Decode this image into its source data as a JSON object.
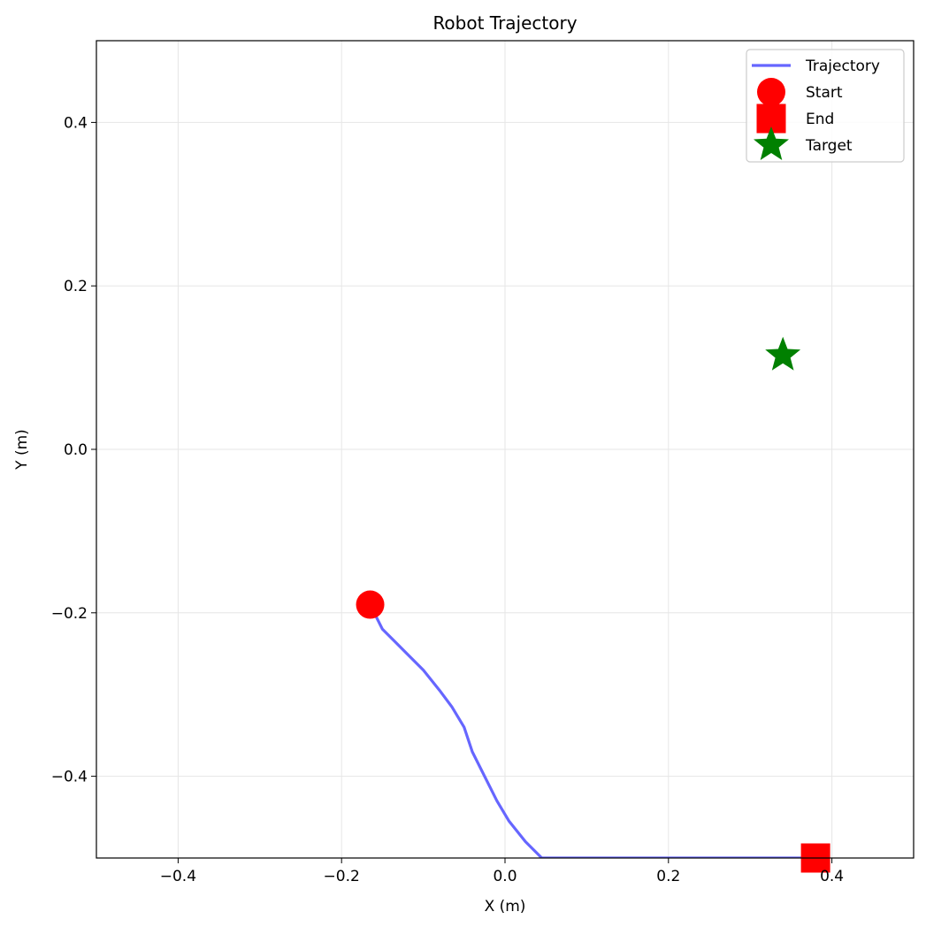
{
  "chart_data": {
    "type": "line",
    "title": "Robot Trajectory",
    "xlabel": "X (m)",
    "ylabel": "Y (m)",
    "xlim": [
      -0.5,
      0.5
    ],
    "ylim": [
      -0.5,
      0.5
    ],
    "xticks": [
      -0.4,
      -0.2,
      0.0,
      0.2,
      0.4
    ],
    "xtick_labels": [
      "−0.4",
      "−0.2",
      "0.0",
      "0.2",
      "0.4"
    ],
    "yticks": [
      -0.4,
      -0.2,
      0.0,
      0.2,
      0.4
    ],
    "ytick_labels": [
      "−0.4",
      "−0.2",
      "0.0",
      "0.2",
      "0.4"
    ],
    "grid": true,
    "legend_position": "top-right",
    "series": [
      {
        "name": "Trajectory",
        "kind": "line",
        "color": "#6666ff",
        "x": [
          -0.165,
          -0.15,
          -0.135,
          -0.12,
          -0.1,
          -0.08,
          -0.065,
          -0.05,
          -0.04,
          -0.025,
          -0.01,
          0.005,
          0.025,
          0.045,
          0.1,
          0.2,
          0.3,
          0.38
        ],
        "y": [
          -0.19,
          -0.22,
          -0.235,
          -0.25,
          -0.27,
          -0.295,
          -0.315,
          -0.34,
          -0.37,
          -0.4,
          -0.43,
          -0.455,
          -0.48,
          -0.5,
          -0.5,
          -0.5,
          -0.5,
          -0.5
        ]
      },
      {
        "name": "Start",
        "kind": "marker",
        "marker": "circle",
        "color": "#ff0000",
        "x": [
          -0.165
        ],
        "y": [
          -0.19
        ]
      },
      {
        "name": "End",
        "kind": "marker",
        "marker": "square",
        "color": "#ff0000",
        "x": [
          0.38
        ],
        "y": [
          -0.5
        ]
      },
      {
        "name": "Target",
        "kind": "marker",
        "marker": "star",
        "color": "#008000",
        "x": [
          0.34
        ],
        "y": [
          0.115
        ]
      }
    ]
  },
  "colors": {
    "grid": "#e6e6e6",
    "axis": "#000000"
  }
}
